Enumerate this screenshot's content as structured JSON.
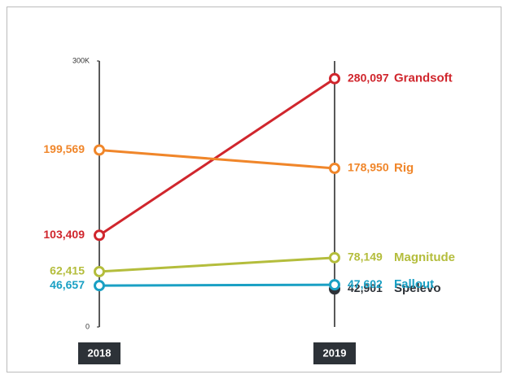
{
  "chart_data": {
    "type": "slope",
    "categories": [
      "2018",
      "2019"
    ],
    "ylim": [
      0,
      300000
    ],
    "yticks": [
      0,
      {
        "value": 300000,
        "label": "300K"
      }
    ],
    "series": [
      {
        "name": "Spelevo",
        "color": "#2d3238",
        "values": [
          null,
          42901
        ],
        "value_labels": [
          null,
          "42,901"
        ]
      },
      {
        "name": "Grandsoft",
        "color": "#d0262d",
        "values": [
          103409,
          280097
        ],
        "value_labels": [
          "103,409",
          "280,097"
        ]
      },
      {
        "name": "Rig",
        "color": "#f0862a",
        "values": [
          199569,
          178950
        ],
        "value_labels": [
          "199,569",
          "178,950"
        ]
      },
      {
        "name": "Magnitude",
        "color": "#b4bd3c",
        "values": [
          62415,
          78149
        ],
        "value_labels": [
          "62,415",
          "78,149"
        ]
      },
      {
        "name": "Fallout",
        "color": "#1aa0c4",
        "values": [
          46657,
          47602
        ],
        "value_labels": [
          "46,657",
          "47,602"
        ]
      }
    ]
  }
}
